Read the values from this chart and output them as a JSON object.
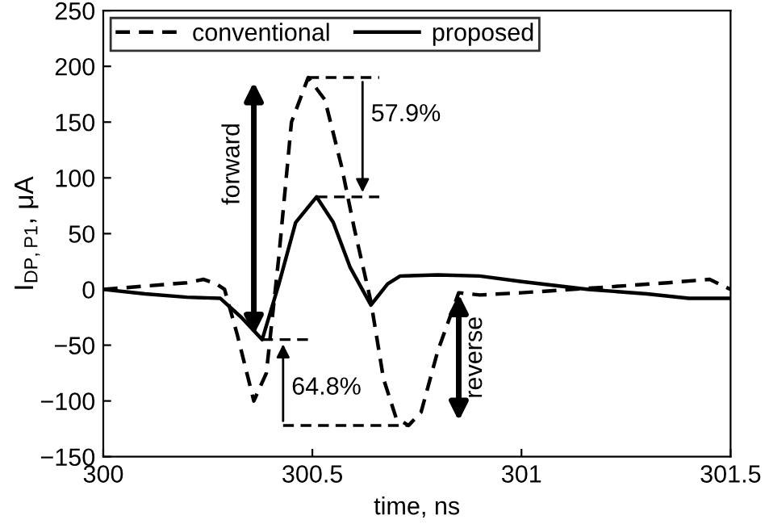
{
  "chart_data": {
    "type": "line",
    "xlabel": "time, ns",
    "ylabel": "I$_{DP,P1}$, μA",
    "xlim": [
      300,
      301.5
    ],
    "ylim": [
      -150,
      250
    ],
    "xticks": [
      300,
      300.5,
      301,
      301.5
    ],
    "yticks": [
      -150,
      -100,
      -50,
      0,
      50,
      100,
      150,
      200,
      250
    ],
    "grid": false,
    "legend": "top left",
    "marker": "none",
    "series": [
      {
        "name": "conventional",
        "color": "#000000",
        "line_style": "dashed",
        "x": [
          300,
          300.1,
          300.2,
          300.24,
          300.27,
          300.29,
          300.32,
          300.36,
          300.39,
          300.42,
          300.45,
          300.49,
          300.53,
          300.57,
          300.6,
          300.64,
          300.67,
          300.7,
          300.73,
          300.76,
          300.8,
          300.85,
          300.9,
          301,
          301.2,
          301.35,
          301.45,
          301.5
        ],
        "values": [
          0,
          3,
          6,
          9,
          5,
          0,
          -40,
          -100,
          -75,
          30,
          150,
          190,
          170,
          110,
          55,
          -11,
          -80,
          -115,
          -122,
          -110,
          -55,
          -3,
          -5,
          -3,
          2,
          6,
          9,
          0
        ]
      },
      {
        "name": "proposed",
        "color": "#000000",
        "line_style": "solid",
        "x": [
          300,
          300.1,
          300.2,
          300.28,
          300.33,
          300.38,
          300.42,
          300.46,
          300.51,
          300.55,
          300.59,
          300.64,
          300.68,
          300.71,
          300.8,
          300.9,
          301,
          301.16,
          301.3,
          301.4,
          301.5
        ],
        "values": [
          0,
          -4,
          -7,
          -8,
          -25,
          -45,
          5,
          60,
          83,
          60,
          20,
          -14,
          5,
          12,
          13,
          12,
          7,
          0,
          -4,
          -8,
          -8
        ]
      }
    ],
    "annotations": [
      {
        "text": "57.9%",
        "x": 300.49,
        "y": 190
      },
      {
        "text": "64.8%",
        "x": 300.73,
        "y": -122
      },
      "forward",
      "reverse"
    ]
  }
}
